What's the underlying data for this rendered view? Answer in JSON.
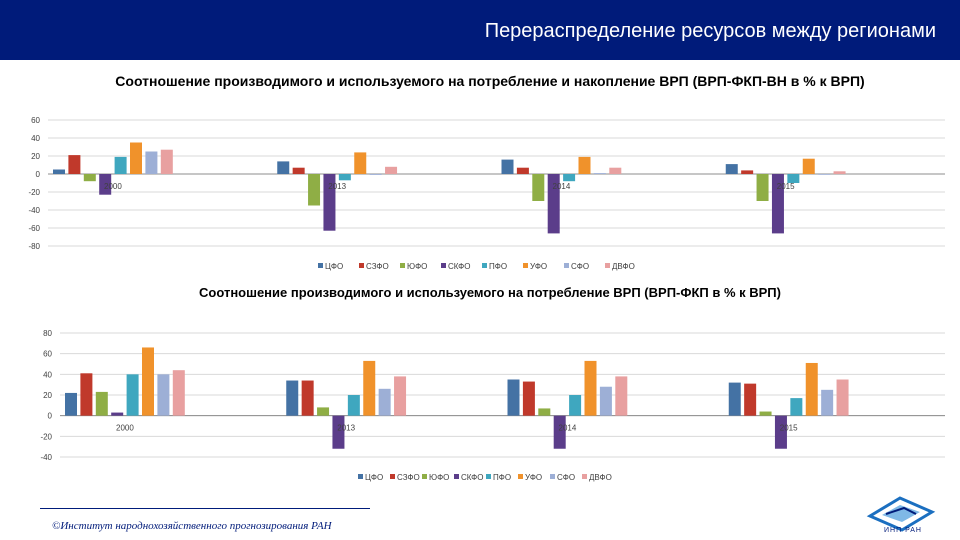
{
  "header": {
    "title": "Перераспределение ресурсов между регионами"
  },
  "footer": {
    "text": "©Институт народнохозяйственного прогнозирования РАН",
    "logo_text": "ИНП РАН"
  },
  "colors": {
    "header_bg": "#001b7a",
    "series": [
      "#4472a4",
      "#c0392b",
      "#8fae45",
      "#5b3d8a",
      "#3fa7bf",
      "#f0922b",
      "#9dafd6",
      "#e8a0a0"
    ]
  },
  "chart_data": [
    {
      "type": "bar",
      "title": "Соотношение производимого и используемого на потребление и накопление ВРП (ВРП-ФКП-ВН в % к ВРП)",
      "categories": [
        "2000",
        "2013",
        "2014",
        "2015"
      ],
      "ylim": [
        -80,
        60
      ],
      "yticks": [
        60,
        40,
        20,
        0,
        -20,
        -40,
        -60,
        -80
      ],
      "legend": "bottom",
      "series": [
        {
          "name": "ЦФО",
          "values": [
            5,
            14,
            16,
            11
          ]
        },
        {
          "name": "СЗФО",
          "values": [
            21,
            7,
            7,
            4
          ]
        },
        {
          "name": "ЮФО",
          "values": [
            -8,
            -35,
            -30,
            -30
          ]
        },
        {
          "name": "СКФО",
          "values": [
            -23,
            -63,
            -66,
            -66
          ]
        },
        {
          "name": "ПФО",
          "values": [
            19,
            -7,
            -8,
            -10
          ]
        },
        {
          "name": "УФО",
          "values": [
            35,
            24,
            19,
            17
          ]
        },
        {
          "name": "СФО",
          "values": [
            25,
            -1,
            1,
            0
          ]
        },
        {
          "name": "ДВФО",
          "values": [
            27,
            8,
            7,
            3
          ]
        }
      ]
    },
    {
      "type": "bar",
      "title": "Соотношение производимого и используемого на потребление ВРП (ВРП-ФКП в % к ВРП)",
      "categories": [
        "2000",
        "2013",
        "2014",
        "2015"
      ],
      "ylim": [
        -40,
        80
      ],
      "yticks": [
        80,
        60,
        40,
        20,
        0,
        -20,
        -40
      ],
      "legend": "bottom",
      "series": [
        {
          "name": "ЦФО",
          "values": [
            22,
            34,
            35,
            32
          ]
        },
        {
          "name": "СЗФО",
          "values": [
            41,
            34,
            33,
            31
          ]
        },
        {
          "name": "ЮФО",
          "values": [
            23,
            8,
            7,
            4
          ]
        },
        {
          "name": "СКФО",
          "values": [
            3,
            -32,
            -32,
            -32
          ]
        },
        {
          "name": "ПФО",
          "values": [
            40,
            20,
            20,
            17
          ]
        },
        {
          "name": "УФО",
          "values": [
            66,
            53,
            53,
            51
          ]
        },
        {
          "name": "СФО",
          "values": [
            40,
            26,
            28,
            25
          ]
        },
        {
          "name": "ДВФО",
          "values": [
            44,
            38,
            38,
            35
          ]
        }
      ]
    }
  ]
}
